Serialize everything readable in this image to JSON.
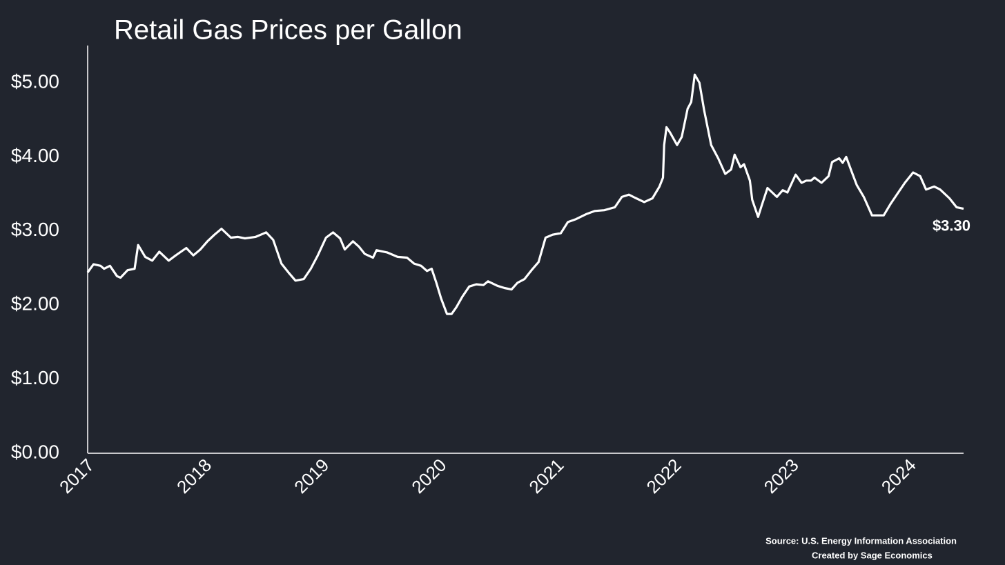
{
  "chart_data": {
    "type": "line",
    "title": "Retail Gas Prices per Gallon",
    "source": "Source: U.S. Energy Information Association",
    "credit": "Created by Sage Economics",
    "xlim": [
      2017,
      2024.46
    ],
    "xticks": [
      2017,
      2018,
      2019,
      2020,
      2021,
      2022,
      2023,
      2024
    ],
    "ylim": [
      0,
      5.5
    ],
    "yticks": [
      {
        "value": 0,
        "label": "$0.00"
      },
      {
        "value": 1,
        "label": "$1.00"
      },
      {
        "value": 2,
        "label": "$2.00"
      },
      {
        "value": 3,
        "label": "$3.00"
      },
      {
        "value": 4,
        "label": "$4.00"
      },
      {
        "value": 5,
        "label": "$5.00"
      }
    ],
    "grid": false,
    "x": [
      2017.0,
      2017.05,
      2017.11,
      2017.14,
      2017.19,
      2017.25,
      2017.28,
      2017.34,
      2017.4,
      2017.43,
      2017.49,
      2017.55,
      2017.61,
      2017.69,
      2017.75,
      2017.84,
      2017.9,
      2017.96,
      2018.02,
      2018.08,
      2018.14,
      2018.22,
      2018.28,
      2018.34,
      2018.43,
      2018.52,
      2018.58,
      2018.65,
      2018.71,
      2018.77,
      2018.84,
      2018.9,
      2018.96,
      2019.03,
      2019.09,
      2019.15,
      2019.19,
      2019.26,
      2019.31,
      2019.36,
      2019.43,
      2019.46,
      2019.55,
      2019.64,
      2019.72,
      2019.78,
      2019.84,
      2019.89,
      2019.93,
      2019.97,
      2020.01,
      2020.06,
      2020.1,
      2020.14,
      2020.19,
      2020.25,
      2020.31,
      2020.37,
      2020.41,
      2020.49,
      2020.55,
      2020.61,
      2020.66,
      2020.72,
      2020.78,
      2020.84,
      2020.9,
      2020.96,
      2021.03,
      2021.09,
      2021.16,
      2021.25,
      2021.32,
      2021.4,
      2021.49,
      2021.55,
      2021.61,
      2021.66,
      2021.74,
      2021.81,
      2021.87,
      2021.9,
      2021.91,
      2021.93,
      2021.96,
      2022.02,
      2022.06,
      2022.11,
      2022.14,
      2022.17,
      2022.21,
      2022.25,
      2022.31,
      2022.37,
      2022.43,
      2022.48,
      2022.51,
      2022.56,
      2022.59,
      2022.64,
      2022.66,
      2022.71,
      2022.74,
      2022.79,
      2022.87,
      2022.92,
      2022.96,
      2023.03,
      2023.08,
      2023.12,
      2023.16,
      2023.19,
      2023.25,
      2023.31,
      2023.34,
      2023.4,
      2023.43,
      2023.46,
      2023.5,
      2023.55,
      2023.61,
      2023.68,
      2023.72,
      2023.78,
      2023.84,
      2023.9,
      2023.96,
      2024.03,
      2024.09,
      2024.14,
      2024.21,
      2024.26,
      2024.34,
      2024.4,
      2024.46
    ],
    "series": [
      {
        "color": "#ffffff",
        "values": [
          2.44,
          2.55,
          2.53,
          2.49,
          2.53,
          2.39,
          2.37,
          2.47,
          2.49,
          2.81,
          2.65,
          2.6,
          2.72,
          2.6,
          2.67,
          2.77,
          2.67,
          2.75,
          2.86,
          2.95,
          3.03,
          2.91,
          2.92,
          2.9,
          2.92,
          2.98,
          2.88,
          2.56,
          2.44,
          2.33,
          2.35,
          2.49,
          2.67,
          2.91,
          2.98,
          2.9,
          2.75,
          2.86,
          2.79,
          2.69,
          2.64,
          2.74,
          2.71,
          2.65,
          2.64,
          2.56,
          2.53,
          2.46,
          2.49,
          2.3,
          2.09,
          1.88,
          1.88,
          1.97,
          2.11,
          2.25,
          2.28,
          2.27,
          2.32,
          2.26,
          2.23,
          2.21,
          2.3,
          2.35,
          2.47,
          2.58,
          2.91,
          2.95,
          2.97,
          3.12,
          3.16,
          3.23,
          3.27,
          3.28,
          3.32,
          3.46,
          3.49,
          3.45,
          3.39,
          3.44,
          3.6,
          3.72,
          4.16,
          4.4,
          4.33,
          4.16,
          4.27,
          4.65,
          4.74,
          5.11,
          5.0,
          4.63,
          4.16,
          3.98,
          3.77,
          3.83,
          4.03,
          3.86,
          3.9,
          3.68,
          3.42,
          3.19,
          3.34,
          3.58,
          3.46,
          3.55,
          3.52,
          3.76,
          3.65,
          3.68,
          3.68,
          3.72,
          3.65,
          3.74,
          3.93,
          3.98,
          3.92,
          4.0,
          3.83,
          3.62,
          3.46,
          3.21,
          3.21,
          3.21,
          3.37,
          3.51,
          3.65,
          3.79,
          3.74,
          3.56,
          3.6,
          3.56,
          3.44,
          3.32,
          3.3
        ],
        "end_label": "$3.30"
      }
    ]
  }
}
